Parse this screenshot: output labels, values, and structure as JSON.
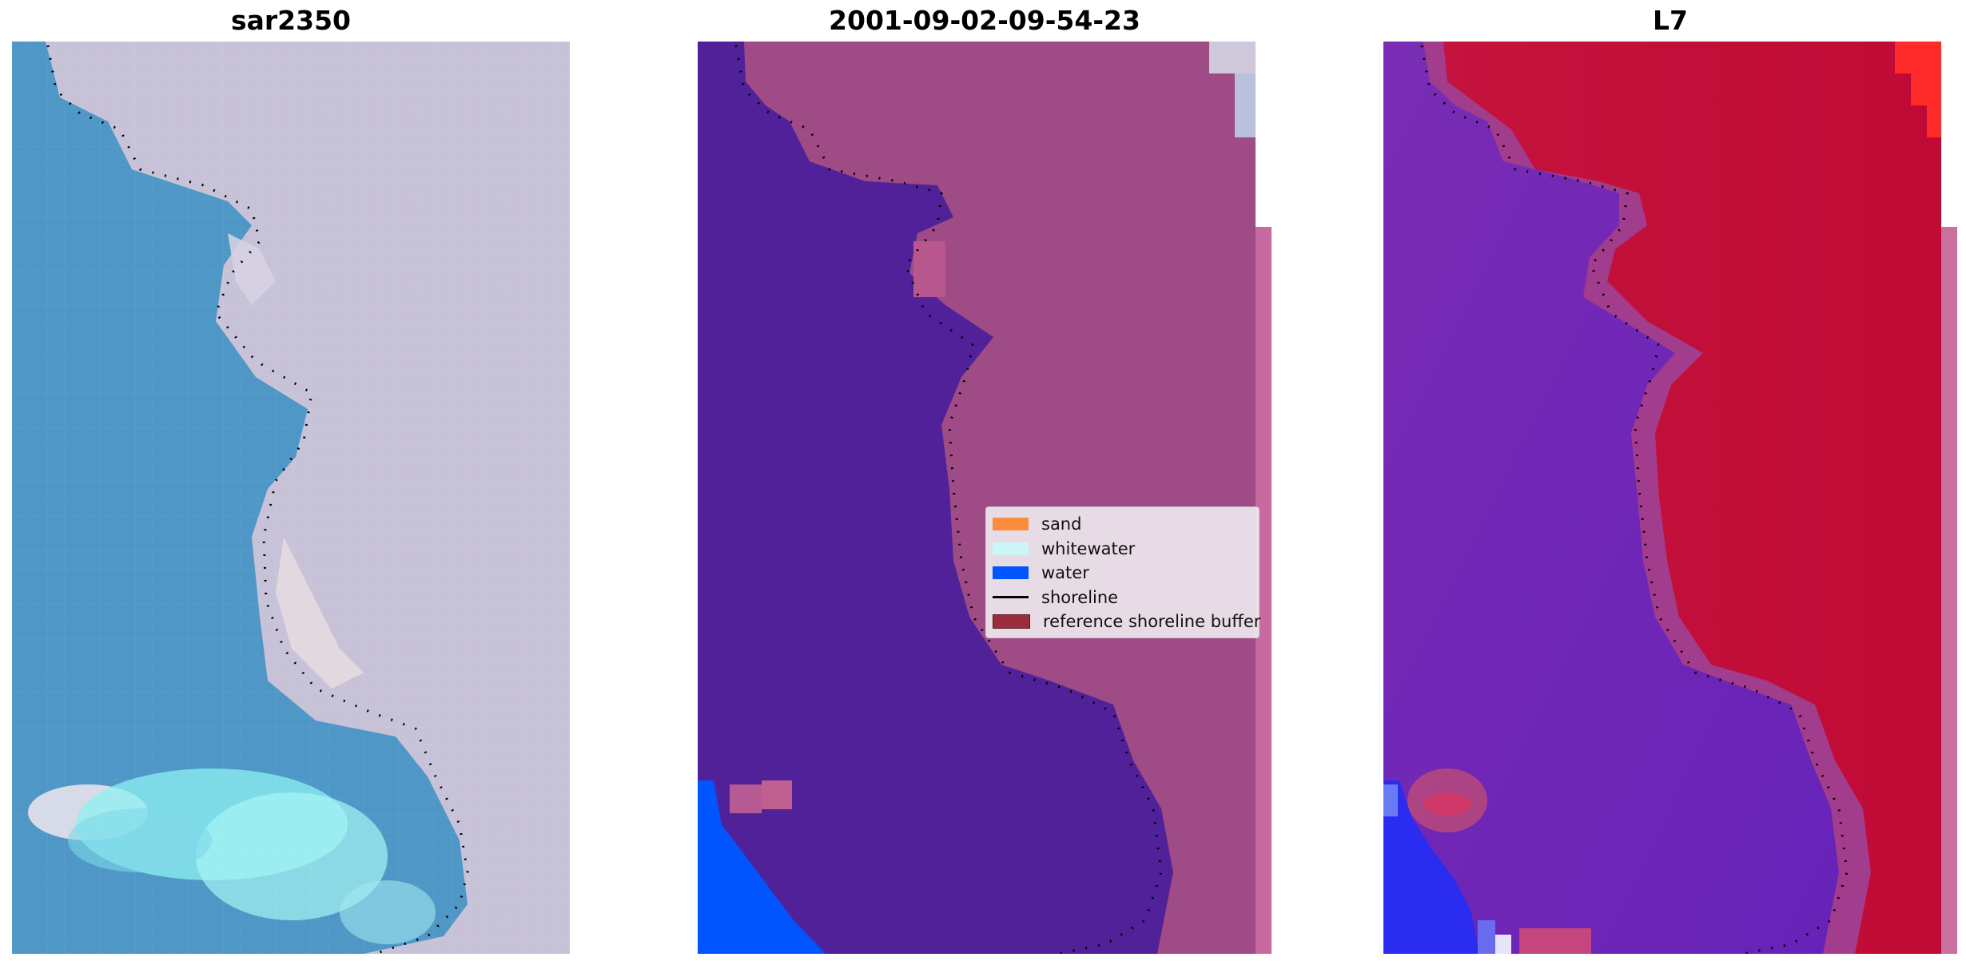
{
  "panels": [
    {
      "title": "sar2350"
    },
    {
      "title": "2001-09-02-09-54-23"
    },
    {
      "title": "L7"
    }
  ],
  "legend": {
    "items": [
      {
        "label": "sand",
        "color": "#fa8c3c"
      },
      {
        "label": "whitewater",
        "color": "#ccf5f5"
      },
      {
        "label": "water",
        "color": "#0055ff"
      },
      {
        "label": "shoreline",
        "color": "#000000"
      },
      {
        "label": "reference shoreline buffer",
        "color": "#9b2d3a"
      }
    ]
  },
  "colors": {
    "rgb_water": "#4f97c6",
    "rgb_land": "#c7c2d8",
    "rgb_whitewater": "#8cf0f2",
    "class_water": "#51219a",
    "class_land": "#9e4b86",
    "class_water_pixels": "#0055ff",
    "mndwi_water": "#6c26b8",
    "mndwi_land": "#c01038",
    "mndwi_hot": "#ff2a2a"
  }
}
